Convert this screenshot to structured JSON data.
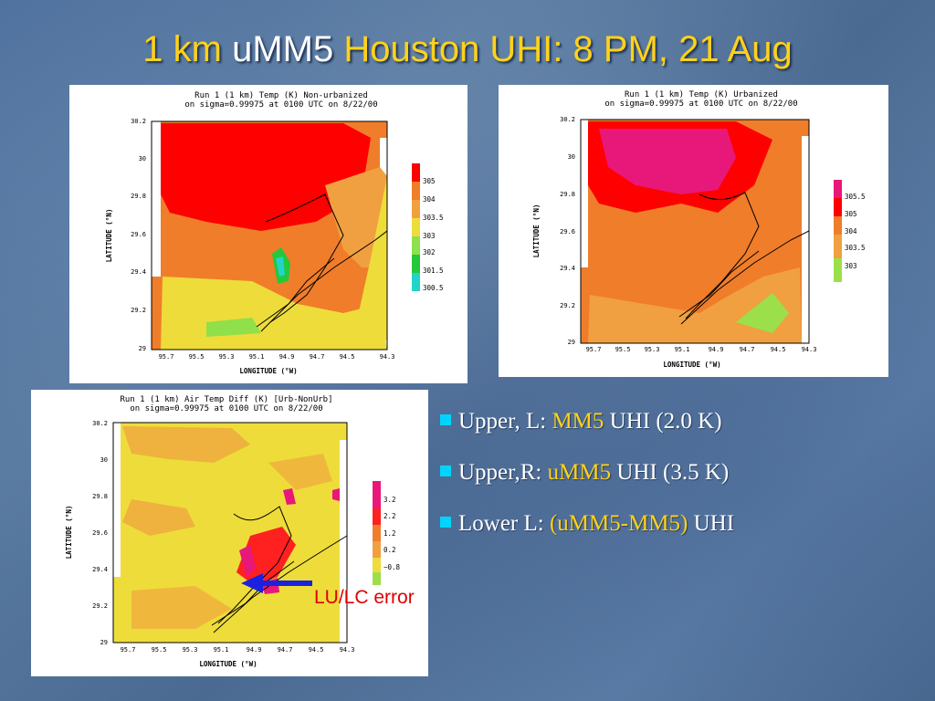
{
  "title": {
    "part1": "1 km ",
    "part2": "uMM5",
    "part3": " Houston UHI: 8 PM, 21 Aug"
  },
  "panels": [
    {
      "id": "upper-left",
      "header_line1": "Run 1 (1 km) Temp (K) Non-urbanized",
      "header_line2": "on sigma=0.99975 at 0100 UTC on 8/22/00",
      "xlabel": "LONGITUDE (°W)",
      "ylabel": "LATITUDE (°N)",
      "xticks": [
        "95.7",
        "95.5",
        "95.3",
        "95.1",
        "94.9",
        "94.7",
        "94.5",
        "94.3"
      ],
      "yticks": [
        "30.2",
        "30",
        "29.8",
        "29.6",
        "29.4",
        "29.2",
        "29"
      ],
      "legend": [
        {
          "label": "305",
          "color": "#ff0000"
        },
        {
          "label": "304",
          "color": "#f07d2a"
        },
        {
          "label": "303.5",
          "color": "#f0a040"
        },
        {
          "label": "303",
          "color": "#eedc3a"
        },
        {
          "label": "302",
          "color": "#8fe04a"
        },
        {
          "label": "301.5",
          "color": "#24c83a"
        },
        {
          "label": "300.5",
          "color": "#22d4c8"
        }
      ]
    },
    {
      "id": "upper-right",
      "header_line1": "Run 1 (1 km) Temp (K) Urbanized",
      "header_line2": "on sigma=0.99975 at 0100 UTC on 8/22/00",
      "xlabel": "LONGITUDE (°W)",
      "ylabel": "LATITUDE (°N)",
      "xticks": [
        "95.7",
        "95.5",
        "95.3",
        "95.1",
        "94.9",
        "94.7",
        "94.5",
        "94.3"
      ],
      "yticks": [
        "30.2",
        "30",
        "29.8",
        "29.6",
        "29.4",
        "29.2",
        "29"
      ],
      "legend": [
        {
          "label": "305.5",
          "color": "#e8187a"
        },
        {
          "label": "305",
          "color": "#ff0000"
        },
        {
          "label": "304",
          "color": "#f07d2a"
        },
        {
          "label": "303.5",
          "color": "#f0a040"
        },
        {
          "label": "303",
          "color": "#9be04a"
        }
      ]
    },
    {
      "id": "lower-left",
      "header_line1": "Run 1 (1 km) Air Temp Diff (K) [Urb-NonUrb]",
      "header_line2": "on sigma=0.99975 at 0100 UTC on 8/22/00",
      "xlabel": "LONGITUDE (°W)",
      "ylabel": "LATITUDE (°N)",
      "xticks": [
        "95.7",
        "95.5",
        "95.3",
        "95.1",
        "94.9",
        "94.7",
        "94.5",
        "94.3"
      ],
      "yticks": [
        "30.2",
        "30",
        "29.8",
        "29.6",
        "29.4",
        "29.2",
        "29"
      ],
      "legend": [
        {
          "label": "3.2",
          "color": "#e8187a"
        },
        {
          "label": "2.2",
          "color": "#ff2020"
        },
        {
          "label": "1.2",
          "color": "#f0a040"
        },
        {
          "label": "0.2",
          "color": "#eedc3a"
        },
        {
          "label": "−0.8",
          "color": "#9be04a"
        }
      ]
    }
  ],
  "bullets": [
    {
      "pre": "Upper, L: ",
      "hl": "MM5",
      "post": " UHI (2.0 K)"
    },
    {
      "pre": "Upper,R: ",
      "hl": "uMM5",
      "post": " UHI (3.5 K)"
    },
    {
      "pre": "Lower L: ",
      "hl": "(uMM5-MM5)",
      "post": " UHI"
    }
  ],
  "annotation": {
    "label": "LU/LC error",
    "arrow_color": "#1a22e0"
  }
}
